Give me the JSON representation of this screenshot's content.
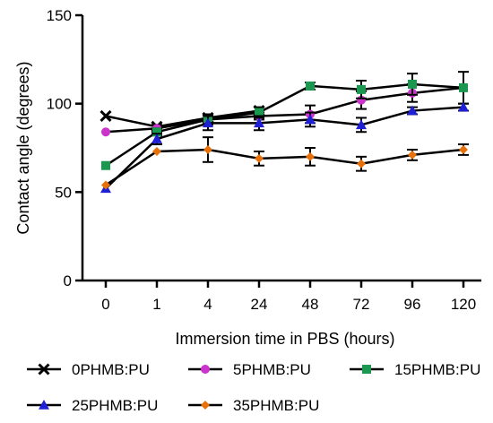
{
  "chart_data": {
    "type": "line",
    "title": "",
    "xlabel": "Immersion time in PBS (hours)",
    "ylabel": "Contact angle (degrees)",
    "categories": [
      "0",
      "1",
      "4",
      "24",
      "48",
      "72",
      "96",
      "120"
    ],
    "yticks": [
      "0",
      "50",
      "100",
      "150"
    ],
    "ylim": [
      0,
      150
    ],
    "grid": false,
    "legend_position": "bottom",
    "series": [
      {
        "name": "0PHMB:PU",
        "color": "#000000",
        "marker": "x",
        "values": [
          93,
          87,
          92,
          96,
          null,
          null,
          null,
          null
        ],
        "errors": [
          0,
          0,
          0,
          0,
          0,
          0,
          0,
          0
        ]
      },
      {
        "name": "5PHMB:PU",
        "color": "#cc33cc",
        "marker": "circle",
        "values": [
          84,
          86,
          91,
          93,
          94,
          102,
          106,
          109
        ],
        "errors": [
          0,
          2,
          2,
          2,
          5,
          5,
          5,
          0
        ]
      },
      {
        "name": "15PHMB:PU",
        "color": "#1a9850",
        "marker": "square",
        "values": [
          65,
          84,
          91,
          95,
          110,
          108,
          111,
          109
        ],
        "errors": [
          0,
          2,
          3,
          3,
          2,
          5,
          6,
          9
        ]
      },
      {
        "name": "25PHMB:PU",
        "color": "#1f1fd6",
        "marker": "triangle",
        "values": [
          52,
          80,
          89,
          89,
          91,
          88,
          96,
          98
        ],
        "errors": [
          0,
          3,
          4,
          4,
          4,
          4,
          2,
          2
        ]
      },
      {
        "name": "35PHMB:PU",
        "color": "#e8700a",
        "marker": "diamond",
        "values": [
          54,
          73,
          74,
          69,
          70,
          66,
          71,
          74
        ],
        "errors": [
          0,
          0,
          7,
          4,
          5,
          4,
          3,
          3
        ]
      }
    ]
  }
}
